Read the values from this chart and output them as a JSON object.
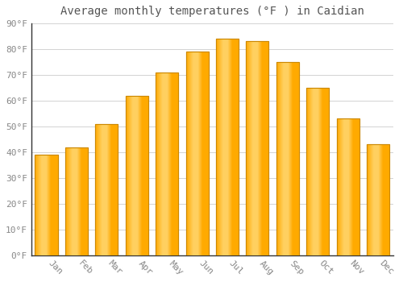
{
  "title": "Average monthly temperatures (°F ) in Caidian",
  "months": [
    "Jan",
    "Feb",
    "Mar",
    "Apr",
    "May",
    "Jun",
    "Jul",
    "Aug",
    "Sep",
    "Oct",
    "Nov",
    "Dec"
  ],
  "values": [
    39,
    42,
    51,
    62,
    71,
    79,
    84,
    83,
    75,
    65,
    53,
    43
  ],
  "bar_color_main": "#FFAA00",
  "bar_color_light": "#FFD060",
  "bar_edge_color": "#CC8800",
  "ylim": [
    0,
    90
  ],
  "yticks": [
    0,
    10,
    20,
    30,
    40,
    50,
    60,
    70,
    80,
    90
  ],
  "ylabel_suffix": "°F",
  "background_color": "#FFFFFF",
  "grid_color": "#CCCCCC",
  "title_fontsize": 10,
  "tick_fontsize": 8,
  "tick_color": "#888888",
  "title_color": "#555555",
  "bar_width": 0.75,
  "spine_color": "#333333",
  "xticklabel_rotation": -45
}
